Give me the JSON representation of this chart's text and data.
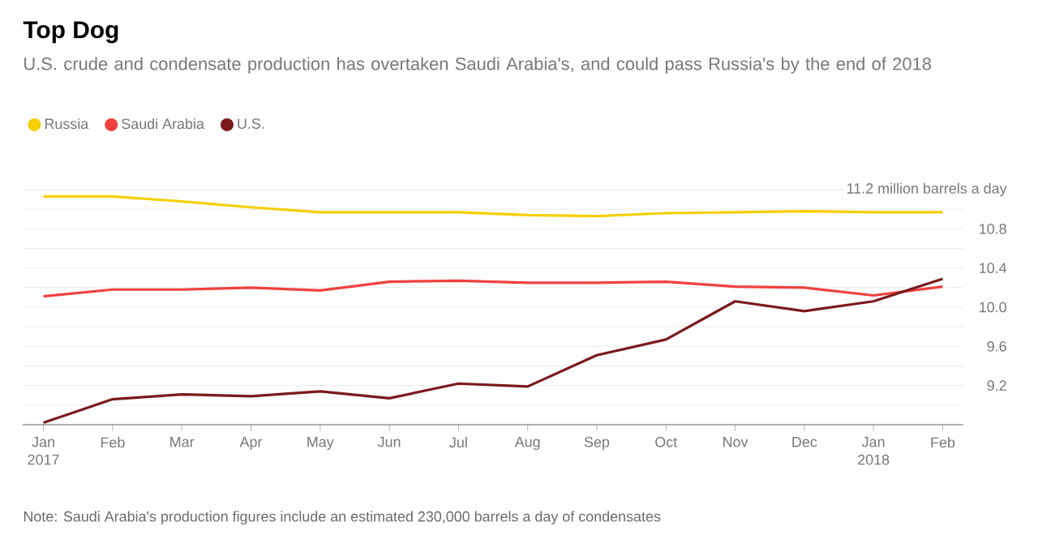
{
  "chart_data": {
    "type": "line",
    "title": "Top Dog",
    "subtitle": "U.S. crude and condensate production has overtaken Saudi Arabia's, and could pass Russia's by the end of 2018",
    "categories": [
      "Jan 2017",
      "Feb",
      "Mar",
      "Apr",
      "May",
      "Jun",
      "Jul",
      "Aug",
      "Sep",
      "Oct",
      "Nov",
      "Dec",
      "Jan 2018",
      "Feb"
    ],
    "series": [
      {
        "name": "Russia",
        "color": "#f5cf00",
        "values": [
          11.13,
          11.13,
          11.08,
          11.02,
          10.97,
          10.97,
          10.97,
          10.94,
          10.93,
          10.96,
          10.97,
          10.98,
          10.97,
          10.97
        ]
      },
      {
        "name": "Saudi Arabia",
        "color": "#f0413d",
        "values": [
          10.11,
          10.18,
          10.18,
          10.2,
          10.17,
          10.26,
          10.27,
          10.25,
          10.25,
          10.26,
          10.21,
          10.2,
          10.12,
          10.21
        ]
      },
      {
        "name": "U.S.",
        "color": "#7a1a1e",
        "values": [
          8.82,
          9.06,
          9.11,
          9.09,
          9.14,
          9.07,
          9.22,
          9.19,
          9.51,
          9.67,
          10.06,
          9.96,
          10.06,
          10.29
        ]
      }
    ],
    "ylim": [
      8.8,
      11.2
    ],
    "yticks": [
      {
        "value": 8.8,
        "label": null
      },
      {
        "value": 9.0,
        "label": null
      },
      9.2,
      {
        "value": 9.4,
        "label": null
      },
      9.6,
      {
        "value": 9.8,
        "label": null
      },
      {
        "value": 10,
        "label": "10.0"
      },
      {
        "value": 10.2,
        "label": null
      },
      10.4,
      {
        "value": 10.6,
        "label": null
      },
      10.8,
      {
        "value": 11.0,
        "label": null
      },
      {
        "value": 11.2,
        "label": "11.2 million barrels a day"
      }
    ],
    "grid": "y",
    "legend": "top left",
    "annotations": [
      "Note: Saudi Arabia's production figures include an estimated 230,000 barrels a day of condensates"
    ]
  }
}
